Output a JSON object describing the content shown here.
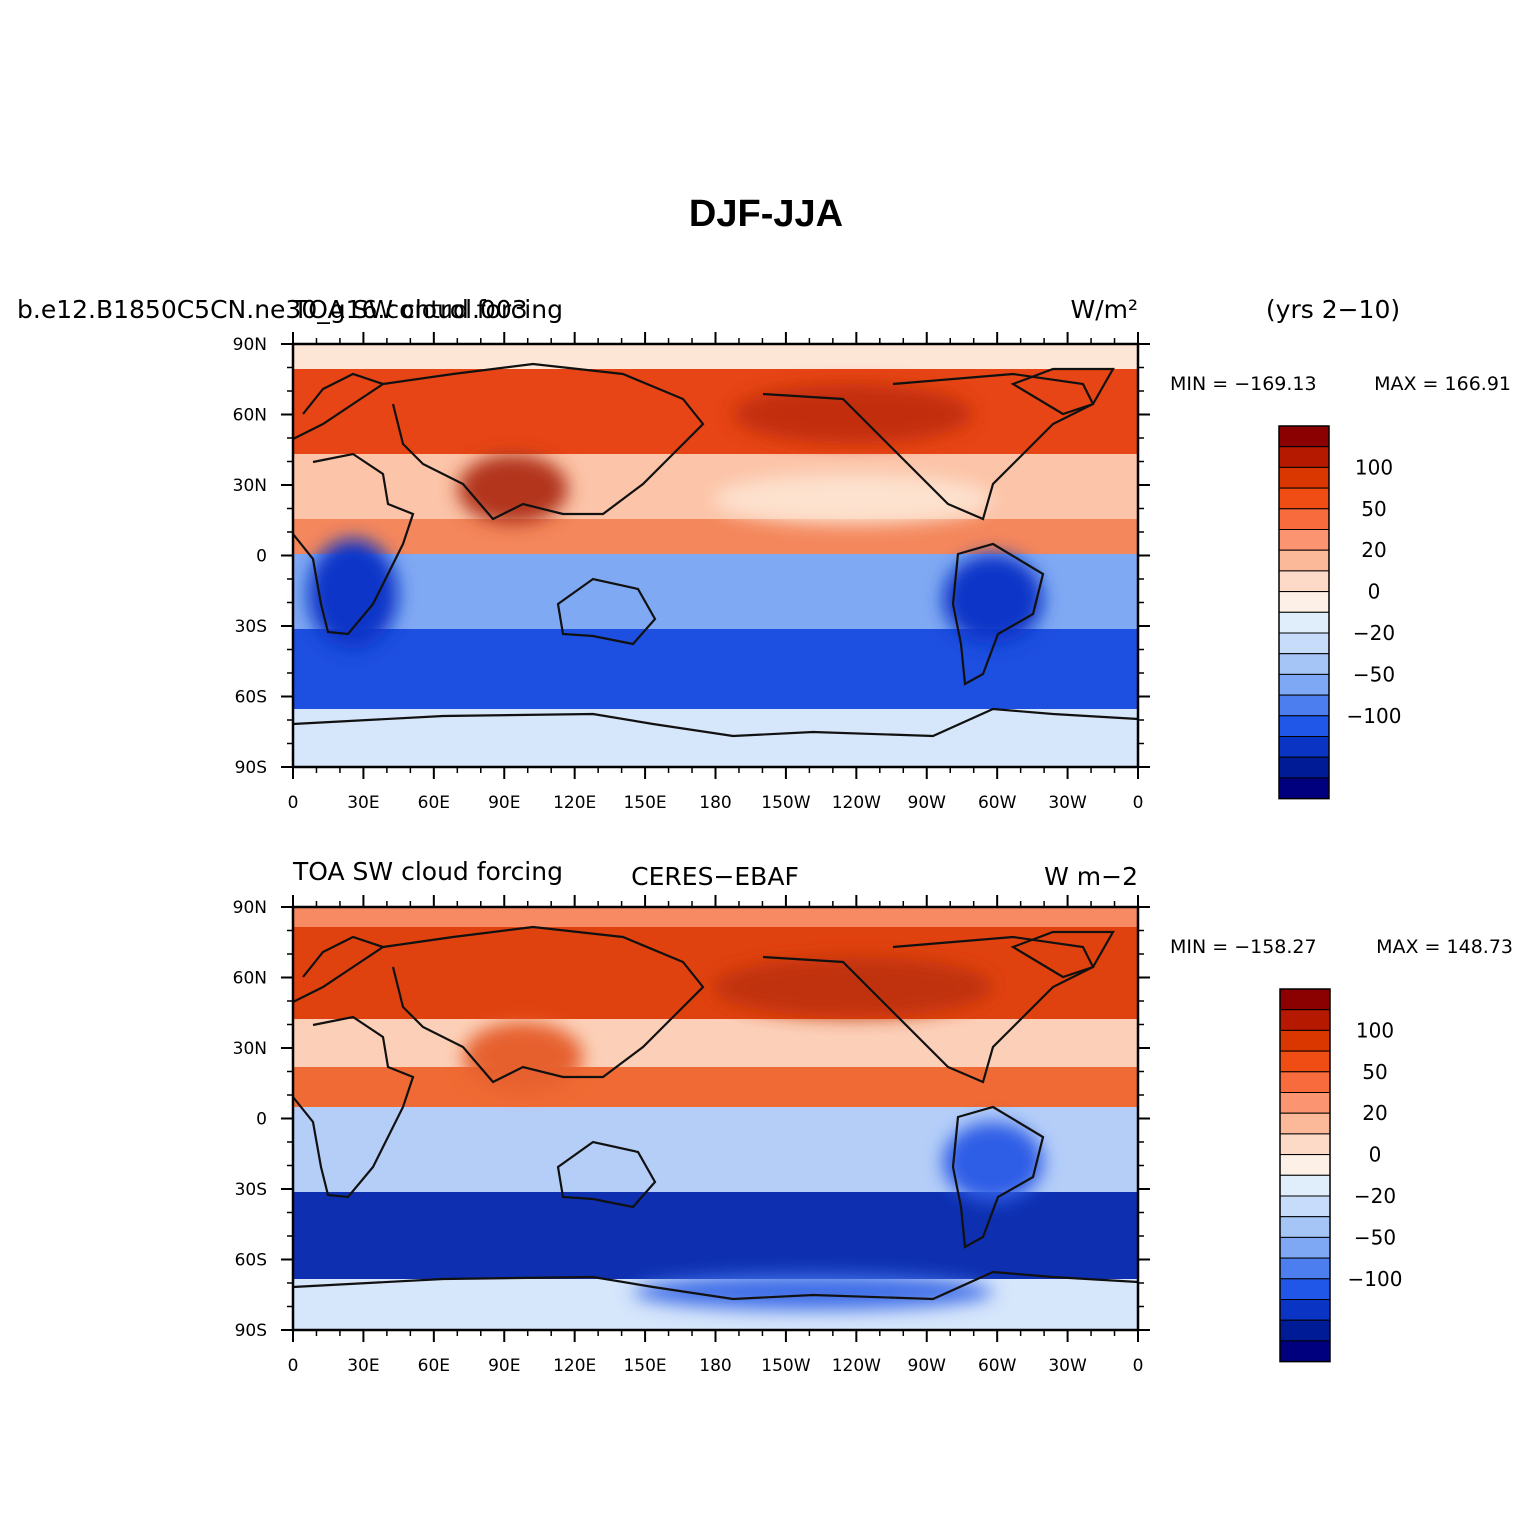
{
  "figure": {
    "title": "DJF-JJA",
    "season_note": "(yrs 2−10)"
  },
  "axes": {
    "lat_ticks": [
      "90N",
      "60N",
      "30N",
      "0",
      "30S",
      "60S",
      "90S"
    ],
    "lon_ticks": [
      "0",
      "30E",
      "60E",
      "90E",
      "120E",
      "150E",
      "180",
      "150W",
      "120W",
      "90W",
      "60W",
      "30W",
      "0"
    ],
    "lat_range": [
      -90,
      90
    ],
    "lon_range": [
      0,
      360
    ]
  },
  "colorbar": {
    "labels": [
      "100",
      "50",
      "20",
      "0",
      "−20",
      "−50",
      "−100"
    ],
    "colors": [
      "#8b0000",
      "#b51a00",
      "#d93600",
      "#f04d14",
      "#f76b3d",
      "#fb9470",
      "#fcb99a",
      "#fdd9c7",
      "#fdf0e6",
      "#e0eefc",
      "#c6dcfa",
      "#a6c5f7",
      "#7ea8f3",
      "#4d7ef0",
      "#2057e8",
      "#0a35c4",
      "#001b96",
      "#00007f"
    ]
  },
  "chart_data": [
    {
      "type": "heatmap",
      "panel": "model",
      "left_label": "b.e12.B1850C5CN.ne30_g16.control.003",
      "center_label": "TOA SW cloud forcing",
      "units": "W/m²",
      "min_label": "MIN = −169.13",
      "max_label": "MAX = 166.91",
      "min": -169.13,
      "max": 166.91,
      "lat_range": [
        -90,
        90
      ],
      "lon_range": [
        0,
        360
      ]
    },
    {
      "type": "heatmap",
      "panel": "obs",
      "left_label": "TOA SW cloud forcing",
      "center_label": "CERES−EBAF",
      "units": "W m−2",
      "min_label": "MIN = −158.27",
      "max_label": "MAX = 148.73",
      "min": -158.27,
      "max": 148.73,
      "lat_range": [
        -90,
        90
      ],
      "lon_range": [
        0,
        360
      ]
    }
  ]
}
